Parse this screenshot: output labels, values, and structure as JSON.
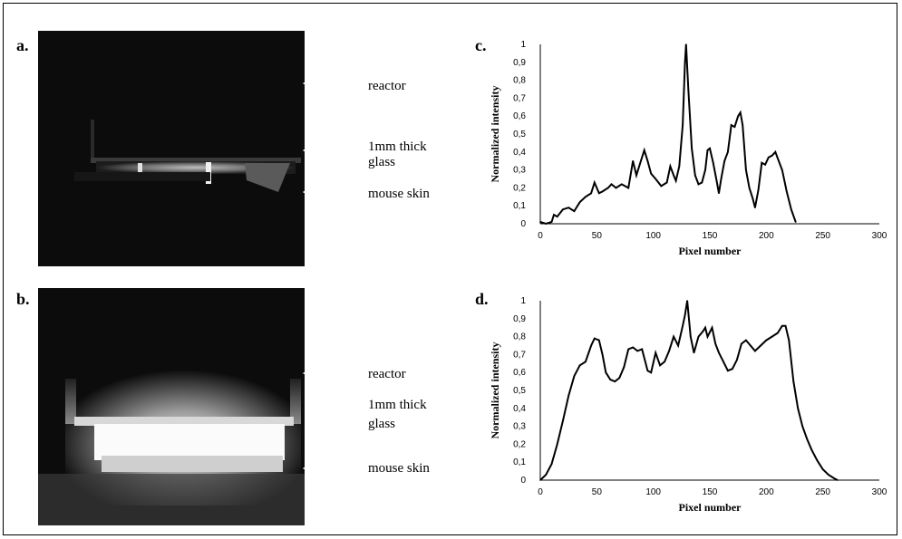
{
  "panels": {
    "a": {
      "letter": "a.",
      "labels": {
        "reactor": "reactor",
        "glass_line1": "1mm thick",
        "glass_line2": "glass",
        "skin": "mouse skin"
      }
    },
    "b": {
      "letter": "b.",
      "labels": {
        "reactor": "reactor",
        "glass_line1": "1mm thick",
        "glass_line2": "glass",
        "skin": "mouse skin"
      }
    }
  },
  "colors": {
    "line": "#000000",
    "photo_dark": "#0c0c0c",
    "arrow": "#ffffff"
  },
  "chart_data": [
    {
      "panel_letter": "c.",
      "type": "line",
      "xlabel": "Pixel number",
      "ylabel": "Normalized intensity",
      "xlim": [
        0,
        300
      ],
      "ylim": [
        0,
        1
      ],
      "xticks": [
        "0",
        "50",
        "100",
        "150",
        "200",
        "250",
        "300"
      ],
      "yticks": [
        "0",
        "0,1",
        "0,2",
        "0,3",
        "0,4",
        "0,5",
        "0,6",
        "0,7",
        "0,8",
        "0,9",
        "1"
      ],
      "grid": false,
      "x": [
        0,
        5,
        10,
        12,
        15,
        20,
        25,
        30,
        35,
        40,
        45,
        48,
        52,
        55,
        60,
        63,
        67,
        72,
        78,
        82,
        85,
        88,
        92,
        95,
        98,
        102,
        107,
        112,
        115,
        118,
        120,
        123,
        126,
        128,
        129,
        131,
        134,
        137,
        140,
        143,
        146,
        148,
        150,
        153,
        156,
        158,
        160,
        163,
        166,
        169,
        172,
        175,
        177,
        179,
        182,
        185,
        188,
        190,
        193,
        196,
        199,
        202,
        205,
        208,
        211,
        214,
        218,
        222,
        226
      ],
      "y": [
        0.01,
        0.0,
        0.01,
        0.05,
        0.04,
        0.08,
        0.09,
        0.07,
        0.12,
        0.15,
        0.17,
        0.23,
        0.17,
        0.18,
        0.2,
        0.22,
        0.2,
        0.22,
        0.2,
        0.35,
        0.27,
        0.33,
        0.41,
        0.35,
        0.28,
        0.25,
        0.21,
        0.23,
        0.32,
        0.27,
        0.24,
        0.32,
        0.55,
        0.9,
        1.0,
        0.75,
        0.42,
        0.27,
        0.22,
        0.23,
        0.3,
        0.41,
        0.42,
        0.34,
        0.24,
        0.17,
        0.25,
        0.35,
        0.4,
        0.55,
        0.54,
        0.6,
        0.62,
        0.55,
        0.3,
        0.2,
        0.14,
        0.09,
        0.19,
        0.34,
        0.33,
        0.37,
        0.38,
        0.4,
        0.35,
        0.3,
        0.18,
        0.08,
        0.01
      ]
    },
    {
      "panel_letter": "d.",
      "type": "line",
      "xlabel": "Pixel number",
      "ylabel": "Normalized intensity",
      "xlim": [
        0,
        300
      ],
      "ylim": [
        0,
        1
      ],
      "xticks": [
        "0",
        "50",
        "100",
        "150",
        "200",
        "250",
        "300"
      ],
      "yticks": [
        "0",
        "0,1",
        "0,2",
        "0,3",
        "0,4",
        "0,5",
        "0,6",
        "0,7",
        "0,8",
        "0,9",
        "1"
      ],
      "grid": false,
      "x": [
        0,
        5,
        10,
        15,
        20,
        25,
        30,
        35,
        40,
        45,
        48,
        52,
        55,
        58,
        62,
        66,
        70,
        74,
        78,
        82,
        86,
        90,
        95,
        98,
        102,
        106,
        110,
        114,
        118,
        122,
        126,
        128,
        130,
        133,
        136,
        140,
        144,
        146,
        148,
        152,
        155,
        158,
        162,
        166,
        170,
        174,
        178,
        182,
        186,
        190,
        195,
        200,
        205,
        210,
        214,
        217,
        220,
        224,
        228,
        232,
        236,
        240,
        245,
        250,
        255,
        260,
        263
      ],
      "y": [
        0.0,
        0.03,
        0.09,
        0.2,
        0.33,
        0.47,
        0.58,
        0.64,
        0.66,
        0.75,
        0.79,
        0.78,
        0.7,
        0.6,
        0.56,
        0.55,
        0.57,
        0.63,
        0.73,
        0.74,
        0.72,
        0.73,
        0.61,
        0.6,
        0.71,
        0.64,
        0.66,
        0.72,
        0.8,
        0.75,
        0.86,
        0.92,
        1.0,
        0.8,
        0.71,
        0.8,
        0.83,
        0.85,
        0.8,
        0.85,
        0.76,
        0.71,
        0.66,
        0.61,
        0.62,
        0.67,
        0.76,
        0.78,
        0.75,
        0.72,
        0.75,
        0.78,
        0.8,
        0.82,
        0.86,
        0.86,
        0.78,
        0.55,
        0.4,
        0.3,
        0.23,
        0.17,
        0.11,
        0.06,
        0.03,
        0.01,
        0.0
      ]
    }
  ]
}
